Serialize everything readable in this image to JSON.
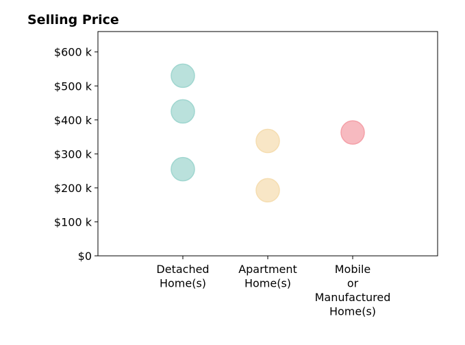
{
  "chart_data": {
    "type": "scatter",
    "title": "Selling Price",
    "xlabel": "",
    "ylabel": "",
    "categories": [
      [
        "Detached",
        "Home(s)"
      ],
      [
        "Apartment",
        "Home(s)"
      ],
      [
        "Mobile",
        "or",
        "Manufactured",
        "Home(s)"
      ]
    ],
    "xlim": [
      -1,
      3
    ],
    "ylim": [
      0,
      660000
    ],
    "yticks": [
      0,
      100000,
      200000,
      300000,
      400000,
      500000,
      600000
    ],
    "ytick_labels": [
      "$0",
      "$100 k",
      "$200 k",
      "$300 k",
      "$400 k",
      "$500 k",
      "$600 k"
    ],
    "grid": false,
    "legend": "none",
    "colors": [
      "#9fd6cf",
      "#f5ddb0",
      "#f4a0a8"
    ],
    "series": [
      {
        "category_index": 0,
        "values": [
          530000,
          425000,
          255000
        ]
      },
      {
        "category_index": 1,
        "values": [
          338000,
          193000
        ]
      },
      {
        "category_index": 2,
        "values": [
          363000
        ]
      }
    ]
  }
}
